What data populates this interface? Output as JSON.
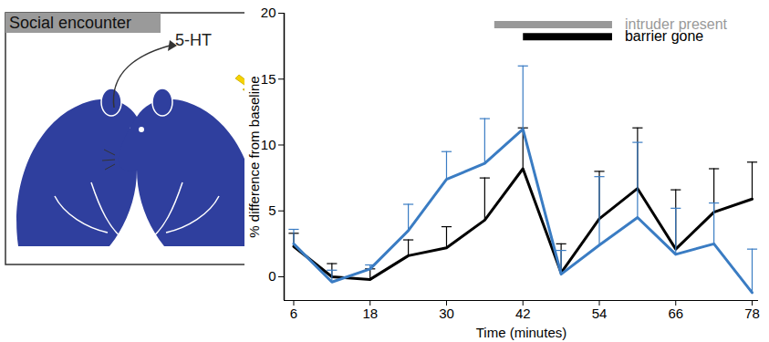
{
  "chart_data": {
    "type": "line",
    "x_label": "Time (minutes)",
    "y_label": "% difference from baseline",
    "x": [
      6,
      12,
      18,
      24,
      30,
      36,
      42,
      48,
      54,
      60,
      66,
      72,
      78
    ],
    "series": [
      {
        "color": "#000000",
        "values": [
          2.3,
          0.0,
          -0.2,
          1.6,
          2.2,
          4.3,
          8.2,
          0.3,
          4.4,
          6.7,
          2.1,
          4.9,
          5.9
        ],
        "errors": [
          1.0,
          1.0,
          0.8,
          1.2,
          1.6,
          3.2,
          3.1,
          2.2,
          3.6,
          4.6,
          4.5,
          3.3,
          2.8
        ]
      },
      {
        "color": "#3a7cc3",
        "values": [
          2.5,
          -0.4,
          0.6,
          3.5,
          7.4,
          8.6,
          11.2,
          0.2,
          2.4,
          4.5,
          1.7,
          2.5,
          -1.2
        ],
        "errors": [
          1.1,
          0.9,
          0.3,
          2.0,
          2.1,
          3.4,
          4.8,
          1.8,
          5.2,
          5.7,
          3.5,
          3.1,
          3.3
        ]
      }
    ],
    "xlim": [
      4.5,
      79
    ],
    "ylim": [
      -1.8,
      20
    ],
    "xticks": [
      6,
      18,
      30,
      42,
      54,
      66,
      78
    ],
    "yticks": [
      0,
      5,
      10,
      15,
      20
    ],
    "annotations": [
      {
        "text": "intruder present",
        "x": [
          37.5,
          56
        ],
        "color": "#999999"
      },
      {
        "text": "barrier gone",
        "x": [
          42,
          56
        ],
        "color": "#000000"
      }
    ]
  },
  "illustration": {
    "label": "Social encounter",
    "signal": "5-HT"
  }
}
